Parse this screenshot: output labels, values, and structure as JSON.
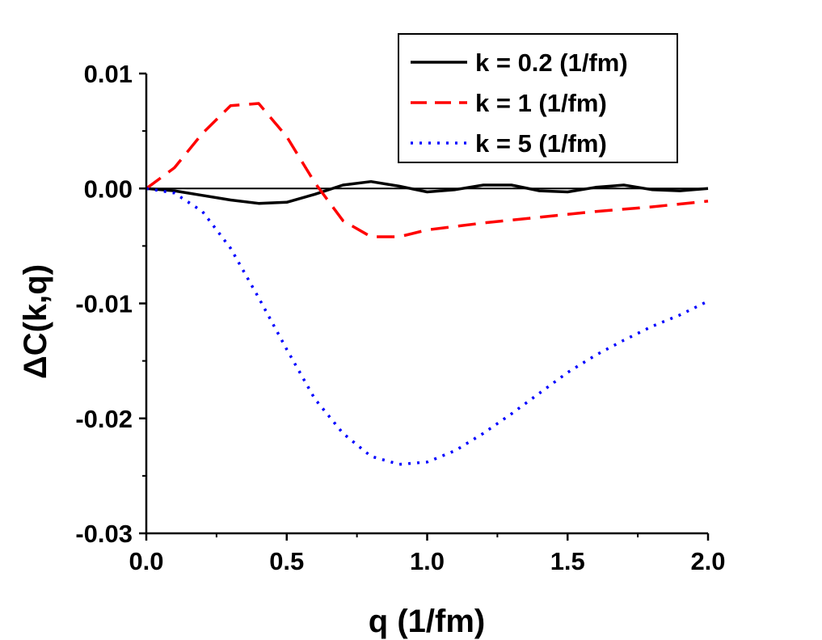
{
  "chart_data": {
    "type": "line",
    "xlabel": "q (1/fm)",
    "ylabel": "ΔC(k,q)",
    "xlim": [
      0.0,
      2.0
    ],
    "ylim": [
      -0.03,
      0.01
    ],
    "xticks": [
      "0.0",
      "0.5",
      "1.0",
      "1.5",
      "2.0"
    ],
    "yticks": [
      "-0.03",
      "-0.02",
      "-0.01",
      "0.00",
      "0.01"
    ],
    "legend_position": "top-right",
    "zero_line": true,
    "series": [
      {
        "name": "k = 0.2 (1/fm)",
        "color": "#000000",
        "style": "solid",
        "x": [
          0.0,
          0.1,
          0.2,
          0.3,
          0.4,
          0.5,
          0.6,
          0.7,
          0.8,
          0.9,
          1.0,
          1.1,
          1.2,
          1.3,
          1.4,
          1.5,
          1.6,
          1.7,
          1.8,
          1.9,
          2.0
        ],
        "y": [
          0.0,
          -0.0002,
          -0.0006,
          -0.001,
          -0.0013,
          -0.0012,
          -0.0005,
          0.0003,
          0.0006,
          0.0002,
          -0.0003,
          -0.0001,
          0.0003,
          0.0003,
          -0.0002,
          -0.0003,
          0.0001,
          0.0003,
          -0.0001,
          -0.0002,
          0.0
        ]
      },
      {
        "name": "k = 1 (1/fm)",
        "color": "#ff0000",
        "style": "dashed",
        "x": [
          0.0,
          0.1,
          0.2,
          0.3,
          0.4,
          0.5,
          0.6,
          0.7,
          0.8,
          0.9,
          1.0,
          1.2,
          1.4,
          1.6,
          1.8,
          2.0
        ],
        "y": [
          0.0,
          0.0018,
          0.0048,
          0.0072,
          0.0074,
          0.0045,
          0.0005,
          -0.0028,
          -0.0042,
          -0.0042,
          -0.0036,
          -0.003,
          -0.0025,
          -0.002,
          -0.0016,
          -0.0011
        ]
      },
      {
        "name": "k = 5 (1/fm)",
        "color": "#0000ff",
        "style": "dotted",
        "x": [
          0.0,
          0.1,
          0.2,
          0.3,
          0.4,
          0.5,
          0.6,
          0.7,
          0.8,
          0.9,
          1.0,
          1.1,
          1.2,
          1.3,
          1.4,
          1.5,
          1.6,
          1.7,
          1.8,
          1.9,
          2.0
        ],
        "y": [
          0.0,
          -0.0004,
          -0.002,
          -0.0052,
          -0.0095,
          -0.014,
          -0.0183,
          -0.0213,
          -0.0233,
          -0.024,
          -0.0238,
          -0.0228,
          -0.0213,
          -0.0196,
          -0.0178,
          -0.016,
          -0.0145,
          -0.0132,
          -0.012,
          -0.011,
          -0.0098
        ]
      }
    ]
  }
}
